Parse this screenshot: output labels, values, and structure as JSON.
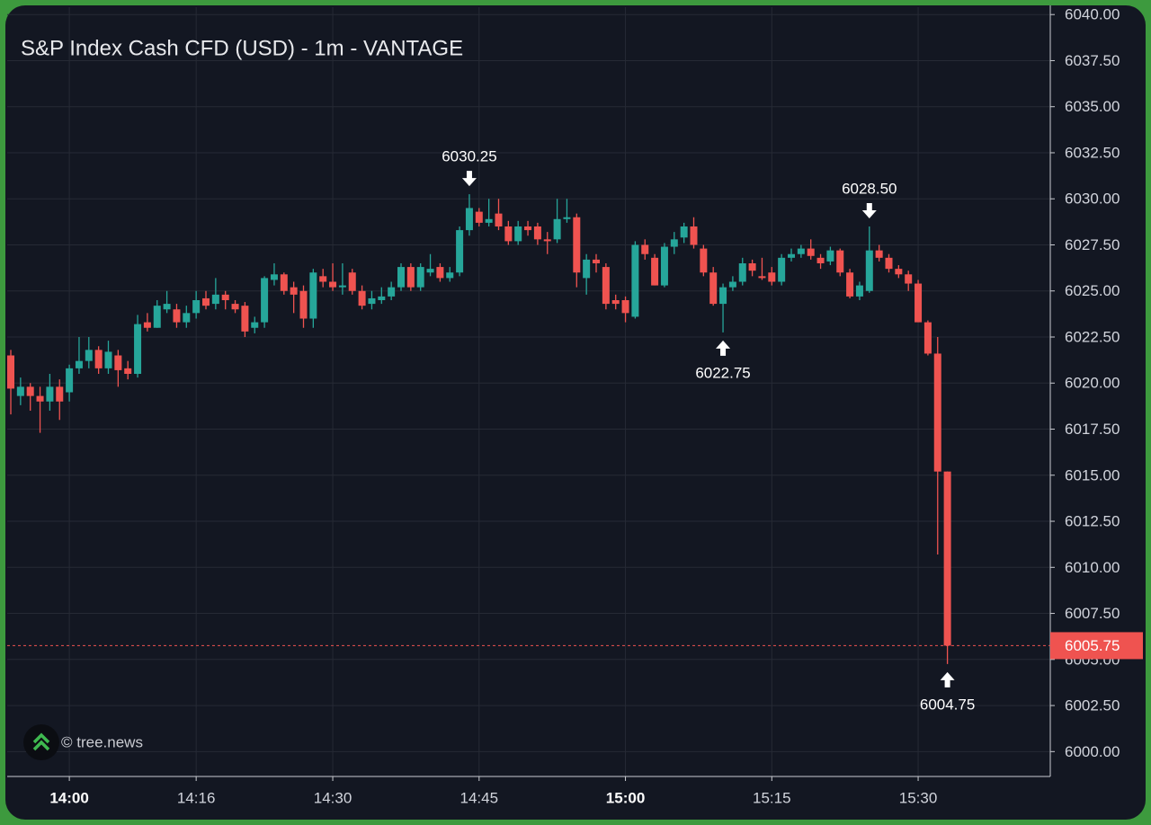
{
  "chart_data": {
    "type": "candlestick",
    "title": "S&P Index Cash CFD (USD) - 1m - VANTAGE",
    "watermark": "© tree.news",
    "x": [
      "13:54",
      "13:55",
      "13:56",
      "13:57",
      "13:58",
      "13:59",
      "14:00",
      "14:01",
      "14:02",
      "14:03",
      "14:04",
      "14:05",
      "14:06",
      "14:07",
      "14:08",
      "14:09",
      "14:10",
      "14:11",
      "14:12",
      "14:16",
      "14:17",
      "14:18",
      "14:19",
      "14:20",
      "14:21",
      "14:22",
      "14:23",
      "14:24",
      "14:25",
      "14:26",
      "14:27",
      "14:28",
      "14:29",
      "14:30",
      "14:31",
      "14:32",
      "14:33",
      "14:34",
      "14:35",
      "14:36",
      "14:37",
      "14:38",
      "14:39",
      "14:40",
      "14:41",
      "14:42",
      "14:43",
      "14:44",
      "14:45",
      "14:46",
      "14:47",
      "14:48",
      "14:49",
      "14:50",
      "14:51",
      "14:52",
      "14:53",
      "14:54",
      "14:55",
      "14:56",
      "14:57",
      "14:58",
      "14:59",
      "15:00",
      "15:01",
      "15:02",
      "15:03",
      "15:04",
      "15:05",
      "15:06",
      "15:07",
      "15:08",
      "15:09",
      "15:10",
      "15:11",
      "15:12",
      "15:13",
      "15:14",
      "15:15",
      "15:16",
      "15:17",
      "15:18",
      "15:19",
      "15:20",
      "15:21",
      "15:22",
      "15:23",
      "15:24",
      "15:25",
      "15:26",
      "15:27",
      "15:28",
      "15:29",
      "15:30",
      "15:31",
      "15:32",
      "15:33"
    ],
    "open": [
      6021.5,
      6019.3,
      6019.8,
      6019.3,
      6019.0,
      6019.8,
      6019.5,
      6020.8,
      6021.2,
      6021.8,
      6020.8,
      6021.5,
      6020.8,
      6020.5,
      6023.3,
      6023.0,
      6024.0,
      6024.0,
      6023.3,
      6023.8,
      6024.6,
      6024.3,
      6024.8,
      6024.3,
      6024.2,
      6023.0,
      6023.3,
      6025.6,
      6025.9,
      6025.2,
      6025.0,
      6023.5,
      6025.8,
      6025.5,
      6025.2,
      6026.0,
      6025.0,
      6024.3,
      6024.5,
      6024.7,
      6025.2,
      6026.3,
      6025.2,
      6026.0,
      6026.3,
      6025.7,
      6026.0,
      6028.3,
      6029.3,
      6028.7,
      6029.2,
      6028.5,
      6027.7,
      6028.5,
      6028.5,
      6027.8,
      6027.8,
      6028.9,
      6029.0,
      6025.7,
      6026.7,
      6026.3,
      6024.5,
      6024.5,
      6023.6,
      6027.5,
      6026.8,
      6025.3,
      6027.4,
      6027.9,
      6028.5,
      6027.3,
      6026.0,
      6024.3,
      6025.2,
      6025.5,
      6026.5,
      6025.8,
      6026.0,
      6025.5,
      6026.8,
      6027.0,
      6027.3,
      6026.8,
      6026.6,
      6027.2,
      6026.0,
      6024.7,
      6025.0,
      6027.2,
      6026.8,
      6026.2,
      6025.9,
      6025.4,
      6023.3,
      6021.6,
      6015.2
    ],
    "high": [
      6021.8,
      6020.3,
      6020.0,
      6019.8,
      6020.5,
      6020.2,
      6021.0,
      6022.5,
      6022.5,
      6022.0,
      6022.3,
      6021.8,
      6021.2,
      6023.7,
      6023.8,
      6024.5,
      6025.0,
      6024.3,
      6024.2,
      6025.0,
      6025.0,
      6025.7,
      6025.0,
      6024.5,
      6024.4,
      6023.6,
      6025.8,
      6026.5,
      6026.0,
      6025.5,
      6025.3,
      6026.2,
      6026.2,
      6026.5,
      6026.5,
      6026.2,
      6025.3,
      6025.0,
      6025.2,
      6025.5,
      6026.5,
      6026.5,
      6026.5,
      6027.0,
      6026.5,
      6026.3,
      6028.5,
      6030.25,
      6029.5,
      6030.0,
      6030.0,
      6028.8,
      6028.8,
      6028.8,
      6028.7,
      6028.2,
      6030.0,
      6030.0,
      6029.2,
      6027.0,
      6027.0,
      6026.5,
      6024.8,
      6024.7,
      6027.7,
      6027.8,
      6027.0,
      6027.6,
      6028.2,
      6028.7,
      6029.0,
      6027.5,
      6026.3,
      6025.4,
      6025.8,
      6026.8,
      6026.7,
      6026.8,
      6026.3,
      6027.0,
      6027.3,
      6027.5,
      6027.8,
      6027.0,
      6027.4,
      6027.3,
      6026.2,
      6025.5,
      6028.5,
      6027.5,
      6027.0,
      6026.4,
      6026.1,
      6025.6,
      6023.4,
      6022.5,
      6015.2
    ],
    "low": [
      6018.3,
      6018.8,
      6018.5,
      6017.3,
      6018.5,
      6018.0,
      6019.0,
      6020.5,
      6020.8,
      6020.5,
      6020.5,
      6019.8,
      6020.2,
      6020.3,
      6022.8,
      6023.0,
      6023.8,
      6023.0,
      6023.0,
      6023.5,
      6024.0,
      6024.0,
      6024.0,
      6023.8,
      6022.5,
      6022.7,
      6023.0,
      6025.3,
      6024.8,
      6023.8,
      6023.0,
      6023.0,
      6025.2,
      6025.0,
      6024.8,
      6024.8,
      6024.0,
      6024.0,
      6024.3,
      6024.5,
      6025.0,
      6025.0,
      6025.0,
      6025.8,
      6025.5,
      6025.5,
      6025.8,
      6028.0,
      6028.5,
      6028.5,
      6028.3,
      6027.5,
      6027.5,
      6028.0,
      6027.5,
      6027.0,
      6027.6,
      6028.7,
      6025.2,
      6024.8,
      6026.0,
      6024.0,
      6024.0,
      6023.3,
      6023.5,
      6026.7,
      6025.3,
      6025.2,
      6027.0,
      6027.6,
      6027.3,
      6025.8,
      6024.2,
      6022.75,
      6025.0,
      6025.3,
      6025.8,
      6025.6,
      6025.3,
      6025.3,
      6026.6,
      6026.8,
      6026.7,
      6026.2,
      6026.4,
      6025.8,
      6024.6,
      6024.5,
      6024.9,
      6026.6,
      6026.0,
      6025.7,
      6025.0,
      6023.3,
      6021.5,
      6010.7,
      6004.75
    ],
    "close": [
      6019.7,
      6019.8,
      6019.3,
      6019.0,
      6019.8,
      6019.0,
      6020.8,
      6021.2,
      6021.8,
      6020.8,
      6021.7,
      6020.7,
      6020.5,
      6023.2,
      6023.0,
      6024.2,
      6024.3,
      6023.3,
      6023.8,
      6024.5,
      6024.2,
      6024.8,
      6024.5,
      6024.0,
      6022.8,
      6023.3,
      6025.7,
      6025.9,
      6025.0,
      6024.8,
      6023.5,
      6026.0,
      6025.5,
      6025.2,
      6025.3,
      6025.0,
      6024.2,
      6024.6,
      6024.7,
      6025.2,
      6026.3,
      6025.2,
      6026.3,
      6026.2,
      6025.7,
      6026.0,
      6028.3,
      6029.5,
      6028.7,
      6028.9,
      6028.5,
      6027.7,
      6028.5,
      6028.3,
      6027.8,
      6027.7,
      6028.9,
      6029.0,
      6026.0,
      6026.7,
      6026.5,
      6024.3,
      6024.3,
      6023.8,
      6027.5,
      6027.0,
      6025.3,
      6027.4,
      6027.8,
      6028.5,
      6027.5,
      6026.0,
      6024.3,
      6025.2,
      6025.5,
      6026.5,
      6026.1,
      6025.7,
      6025.5,
      6026.8,
      6027.0,
      6027.3,
      6026.9,
      6026.5,
      6027.2,
      6026.0,
      6024.7,
      6025.3,
      6027.2,
      6026.8,
      6026.2,
      6025.9,
      6025.4,
      6023.3,
      6021.6,
      6015.2,
      6005.75
    ],
    "up_color": "#26a69a",
    "down_color": "#ef5350",
    "ylim": [
      5998.65,
      6040.4
    ],
    "yticks": [
      {
        "value": 6000,
        "label": "6000.00"
      },
      {
        "value": 6002.5,
        "label": "6002.50"
      },
      {
        "value": 6005,
        "label": "6005.00"
      },
      {
        "value": 6007.5,
        "label": "6007.50"
      },
      {
        "value": 6010,
        "label": "6010.00"
      },
      {
        "value": 6012.5,
        "label": "6012.50"
      },
      {
        "value": 6015,
        "label": "6015.00"
      },
      {
        "value": 6017.5,
        "label": "6017.50"
      },
      {
        "value": 6020,
        "label": "6020.00"
      },
      {
        "value": 6022.5,
        "label": "6022.50"
      },
      {
        "value": 6025,
        "label": "6025.00"
      },
      {
        "value": 6027.5,
        "label": "6027.50"
      },
      {
        "value": 6030,
        "label": "6030.00"
      },
      {
        "value": 6032.5,
        "label": "6032.50"
      },
      {
        "value": 6035,
        "label": "6035.00"
      },
      {
        "value": 6037.5,
        "label": "6037.50"
      },
      {
        "value": 6040,
        "label": "6040.00"
      }
    ],
    "xticks": [
      "14:00",
      "14:16",
      "14:30",
      "14:45",
      "15:00",
      "15:15",
      "15:30"
    ],
    "grid": true,
    "annotations": [
      {
        "x": "14:44",
        "value": 6030.25,
        "label": "6030.25",
        "position": "above"
      },
      {
        "x": "15:10",
        "value": 6022.75,
        "label": "6022.75",
        "position": "below"
      },
      {
        "x": "15:25",
        "value": 6028.5,
        "label": "6028.50",
        "position": "above"
      },
      {
        "x": "15:33",
        "value": 6004.75,
        "label": "6004.75",
        "position": "below"
      }
    ],
    "last_price": {
      "value": 6005.75,
      "label": "6005.75"
    }
  }
}
